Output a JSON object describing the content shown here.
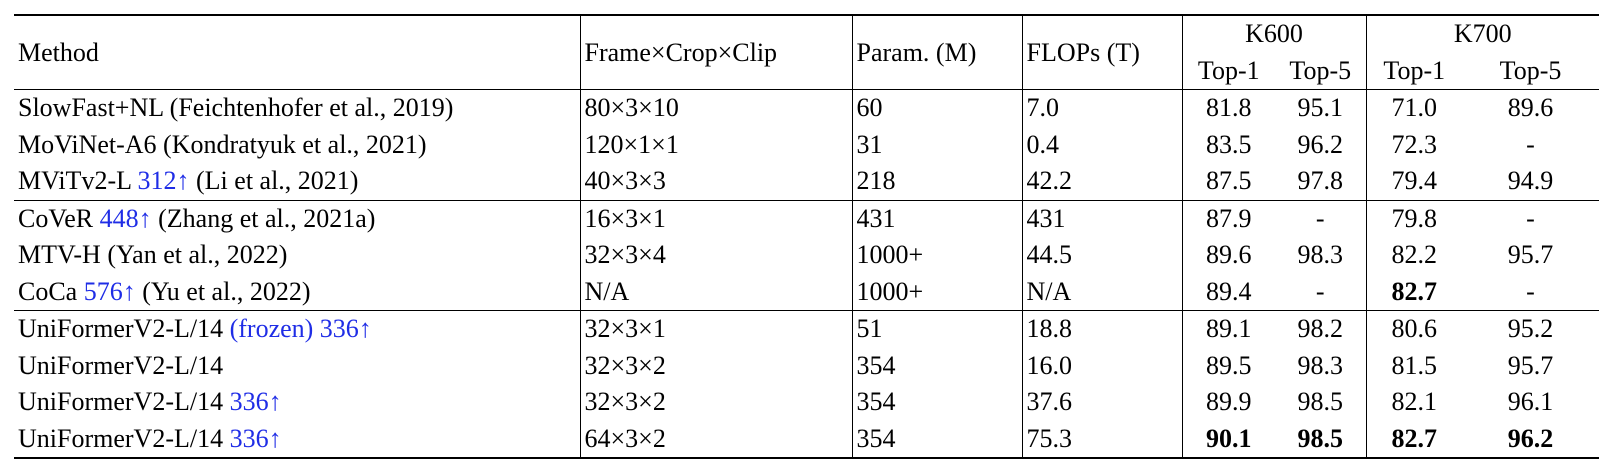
{
  "header": {
    "method": "Method",
    "fcc": "Frame×Crop×Clip",
    "param": "Param. (M)",
    "flops": "FLOPs (T)",
    "k600": "K600",
    "k700": "K700",
    "top1": "Top-1",
    "top5": "Top-5"
  },
  "rows": [
    {
      "name": "SlowFast+NL (Feichtenhofer et al., 2019)",
      "tag": "",
      "cite": "",
      "fcc": "80×3×10",
      "param": "60",
      "flops": "7.0",
      "k600_top1": "81.8",
      "k600_top5": "95.1",
      "k700_top1": "71.0",
      "k700_top5": "89.6"
    },
    {
      "name": "MoViNet-A6 (Kondratyuk et al., 2021)",
      "tag": "",
      "cite": "",
      "fcc": "120×1×1",
      "param": "31",
      "flops": "0.4",
      "k600_top1": "83.5",
      "k600_top5": "96.2",
      "k700_top1": "72.3",
      "k700_top5": "-"
    },
    {
      "name": "MViTv2-L",
      "tag": "312↑",
      "cite": "(Li et al., 2021)",
      "fcc": "40×3×3",
      "param": "218",
      "flops": "42.2",
      "k600_top1": "87.5",
      "k600_top5": "97.8",
      "k700_top1": "79.4",
      "k700_top5": "94.9"
    },
    {
      "name": "CoVeR",
      "tag": "448↑",
      "cite": "(Zhang et al., 2021a)",
      "fcc": "16×3×1",
      "param": "431",
      "flops": "431",
      "k600_top1": "87.9",
      "k600_top5": "-",
      "k700_top1": "79.8",
      "k700_top5": "-"
    },
    {
      "name": "MTV-H (Yan et al., 2022)",
      "tag": "",
      "cite": "",
      "fcc": "32×3×4",
      "param": "1000+",
      "flops": "44.5",
      "k600_top1": "89.6",
      "k600_top5": "98.3",
      "k700_top1": "82.2",
      "k700_top5": "95.7"
    },
    {
      "name": "CoCa",
      "tag": "576↑",
      "cite": "(Yu et al., 2022)",
      "fcc": "N/A",
      "param": "1000+",
      "flops": "N/A",
      "k600_top1": "89.4",
      "k600_top5": "-",
      "k700_top1": "82.7",
      "k700_top5": "-"
    },
    {
      "name": "UniFormerV2-L/14",
      "tag": "(frozen) 336↑",
      "cite": "",
      "fcc": "32×3×1",
      "param": "51",
      "flops": "18.8",
      "k600_top1": "89.1",
      "k600_top5": "98.2",
      "k700_top1": "80.6",
      "k700_top5": "95.2"
    },
    {
      "name": "UniFormerV2-L/14",
      "tag": "",
      "cite": "",
      "fcc": "32×3×2",
      "param": "354",
      "flops": "16.0",
      "k600_top1": "89.5",
      "k600_top5": "98.3",
      "k700_top1": "81.5",
      "k700_top5": "95.7"
    },
    {
      "name": "UniFormerV2-L/14",
      "tag": "336↑",
      "cite": "",
      "fcc": "32×3×2",
      "param": "354",
      "flops": "37.6",
      "k600_top1": "89.9",
      "k600_top5": "98.5",
      "k700_top1": "82.1",
      "k700_top5": "96.1"
    },
    {
      "name": "UniFormerV2-L/14",
      "tag": "336↑",
      "cite": "",
      "fcc": "64×3×2",
      "param": "354",
      "flops": "75.3",
      "k600_top1": "90.1",
      "k600_top5": "98.5",
      "k700_top1": "82.7",
      "k700_top5": "96.2"
    }
  ]
}
